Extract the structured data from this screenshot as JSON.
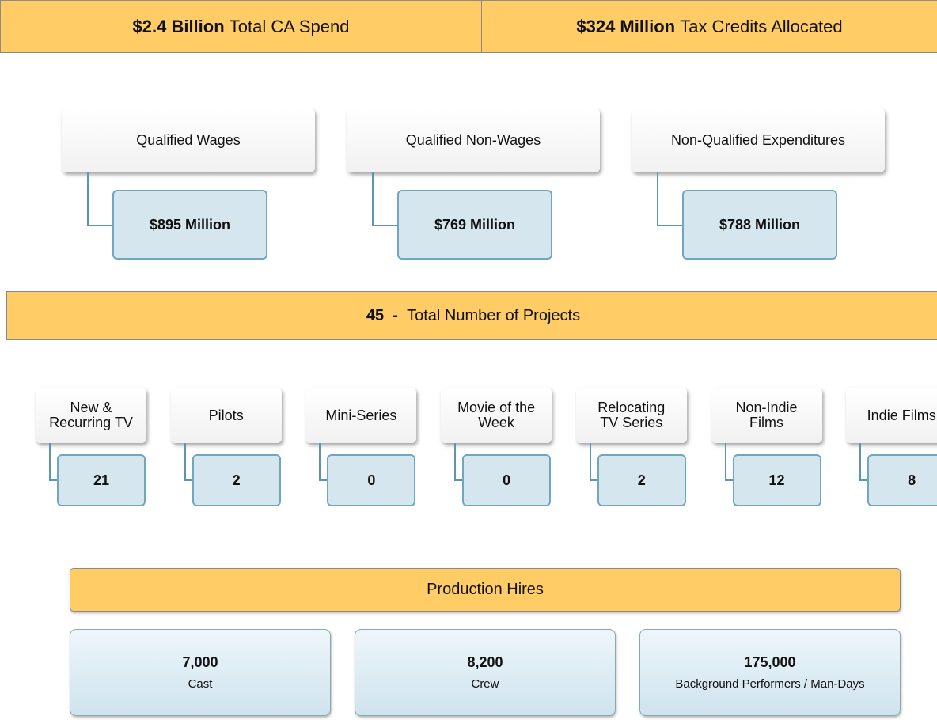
{
  "header": {
    "items": [
      {
        "amount": "$2.4 Billion",
        "label": "Total CA Spend"
      },
      {
        "amount": "$324 Million",
        "label": "Tax Credits Allocated"
      }
    ]
  },
  "spend": [
    {
      "label": "Qualified Wages",
      "value": "$895 Million"
    },
    {
      "label": "Qualified Non-Wages",
      "value": "$769 Million"
    },
    {
      "label": "Non-Qualified Expenditures",
      "value": "$788 Million"
    }
  ],
  "projects": {
    "total": "45",
    "separator": "-",
    "label": "Total Number of Projects",
    "items": [
      {
        "label": "New &\nRecurring TV",
        "value": "21"
      },
      {
        "label": "Pilots",
        "value": "2"
      },
      {
        "label": "Mini-Series",
        "value": "0"
      },
      {
        "label": "Movie of the\nWeek",
        "value": "0"
      },
      {
        "label": "Relocating\nTV Series",
        "value": "2"
      },
      {
        "label": "Non-Indie\nFilms",
        "value": "12"
      },
      {
        "label": "Indie Films",
        "value": "8"
      }
    ]
  },
  "hires": {
    "title": "Production Hires",
    "items": [
      {
        "value": "7,000",
        "label": "Cast"
      },
      {
        "value": "8,200",
        "label": "Crew"
      },
      {
        "value": "175,000",
        "label": "Background Performers / Man-Days"
      }
    ]
  }
}
